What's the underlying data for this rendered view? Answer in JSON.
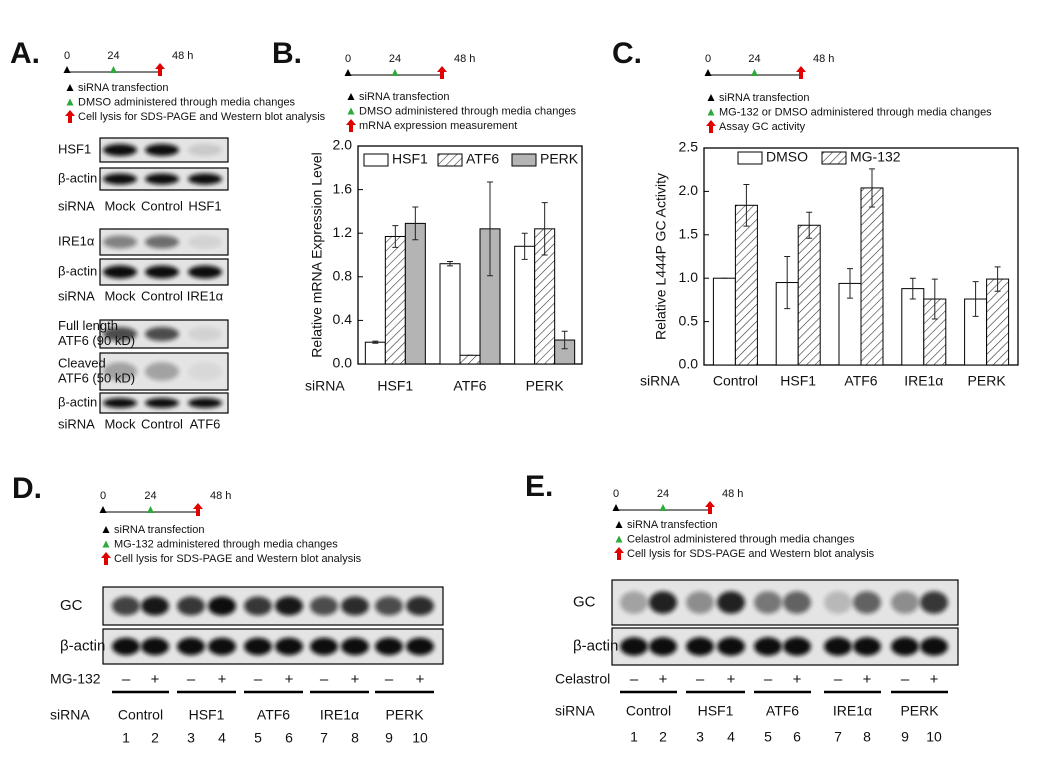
{
  "chart_data": [
    {
      "type": "bar",
      "y_label": "Relative mRNA Expression Level",
      "x_label": "siRNA",
      "categories": [
        "HSF1",
        "ATF6",
        "PERK"
      ],
      "series": [
        {
          "name": "HSF1",
          "color": "#ffffff",
          "values": [
            0.2,
            0.92,
            1.08
          ],
          "errors": [
            0.01,
            0.02,
            0.12
          ]
        },
        {
          "name": "ATF6",
          "color": "#ffffff",
          "hatch": true,
          "values": [
            1.17,
            0.08,
            1.24
          ],
          "errors": [
            0.1,
            0,
            0.24
          ]
        },
        {
          "name": "PERK",
          "color": "#b4b4b4",
          "values": [
            1.29,
            1.24,
            0.22
          ],
          "errors": [
            0.15,
            0.43,
            0.08
          ]
        }
      ],
      "ylim": [
        0,
        2
      ],
      "yticks": [
        {
          "value": 0,
          "label": "0.0"
        },
        0.4,
        0.8,
        1.2,
        1.6,
        {
          "value": 2,
          "label": "2.0"
        }
      ],
      "legend": "top"
    },
    {
      "type": "bar",
      "y_label": "Relative L444P GC Activity",
      "x_label": "siRNA",
      "categories": [
        "Control",
        "HSF1",
        "ATF6",
        "IRE1α",
        "PERK"
      ],
      "series": [
        {
          "name": "DMSO",
          "color": "#ffffff",
          "values": [
            1.0,
            0.95,
            0.94,
            0.88,
            0.76
          ],
          "errors": [
            0,
            0.3,
            0.17,
            0.12,
            0.2
          ]
        },
        {
          "name": "MG-132",
          "color": "#ffffff",
          "hatch": true,
          "values": [
            1.84,
            1.61,
            2.04,
            0.76,
            0.99
          ],
          "errors": [
            0.24,
            0.15,
            0.22,
            0.23,
            0.14
          ]
        }
      ],
      "ylim": [
        0,
        2.5
      ],
      "yticks": [
        {
          "value": 0,
          "label": "0.0"
        },
        0.5,
        {
          "value": 1,
          "label": "1.0"
        },
        1.5,
        {
          "value": 2,
          "label": "2.0"
        },
        2.5
      ],
      "legend": "top"
    }
  ],
  "panels": [
    {
      "letter": "A.",
      "timeline": [
        "0",
        "24",
        "48 h"
      ],
      "steps": [
        "siRNA transfection",
        "DMSO administered through media changes",
        "Cell lysis for SDS-PAGE and Western blot analysis"
      ],
      "sets": [
        {
          "blots": [
            [
              "HSF1"
            ],
            [
              "β-actin"
            ]
          ],
          "sirna": "siRNA",
          "lanes": [
            "Mock",
            "Control",
            "HSF1"
          ]
        },
        {
          "blots": [
            [
              "IRE1α"
            ],
            [
              "β-actin"
            ]
          ],
          "sirna": "siRNA",
          "lanes": [
            "Mock",
            "Control",
            "IRE1α"
          ]
        },
        {
          "blots": [
            [
              "Full length",
              "ATF6 (90 kD)"
            ],
            [
              "Cleaved",
              "ATF6 (50 kD)"
            ],
            [
              "β-actin"
            ]
          ],
          "sirna": "siRNA",
          "lanes": [
            "Mock",
            "Control",
            "ATF6"
          ]
        }
      ]
    },
    {
      "letter": "B.",
      "timeline": [
        "0",
        "24",
        "48 h"
      ],
      "steps": [
        "siRNA transfection",
        "DMSO administered through media changes",
        "mRNA expression measurement"
      ]
    },
    {
      "letter": "C.",
      "timeline": [
        "0",
        "24",
        "48 h"
      ],
      "steps": [
        "siRNA transfection",
        "MG-132 or DMSO administered through media changes",
        "Assay GC activity"
      ]
    },
    {
      "letter": "D.",
      "timeline": [
        "0",
        "24",
        "48 h"
      ],
      "steps": [
        "siRNA transfection",
        "MG-132 administered through media changes",
        "Cell lysis for SDS-PAGE and Western blot analysis"
      ],
      "blots": [
        "GC",
        "β-actin"
      ],
      "treatment": {
        "label": "MG-132",
        "signs": [
          "–",
          "+",
          "–",
          "+",
          "–",
          "+",
          "–",
          "+",
          "–",
          "+"
        ]
      },
      "sirna": {
        "label": "siRNA",
        "groups": [
          "Control",
          "HSF1",
          "ATF6",
          "IRE1α",
          "PERK"
        ]
      },
      "lanes": [
        1,
        2,
        3,
        4,
        5,
        6,
        7,
        8,
        9,
        10
      ]
    },
    {
      "letter": "E.",
      "timeline": [
        "0",
        "24",
        "48 h"
      ],
      "steps": [
        "siRNA transfection",
        "Celastrol administered through media changes",
        "Cell lysis for SDS-PAGE and Western blot analysis"
      ],
      "blots": [
        "GC",
        "β-actin"
      ],
      "treatment": {
        "label": "Celastrol",
        "signs": [
          "–",
          "+",
          "–",
          "+",
          "–",
          "+",
          "–",
          "+",
          "–",
          "+"
        ]
      },
      "sirna": {
        "label": "siRNA",
        "groups": [
          "Control",
          "HSF1",
          "ATF6",
          "IRE1α",
          "PERK"
        ]
      },
      "lanes": [
        1,
        2,
        3,
        4,
        5,
        6,
        7,
        8,
        9,
        10
      ]
    }
  ]
}
